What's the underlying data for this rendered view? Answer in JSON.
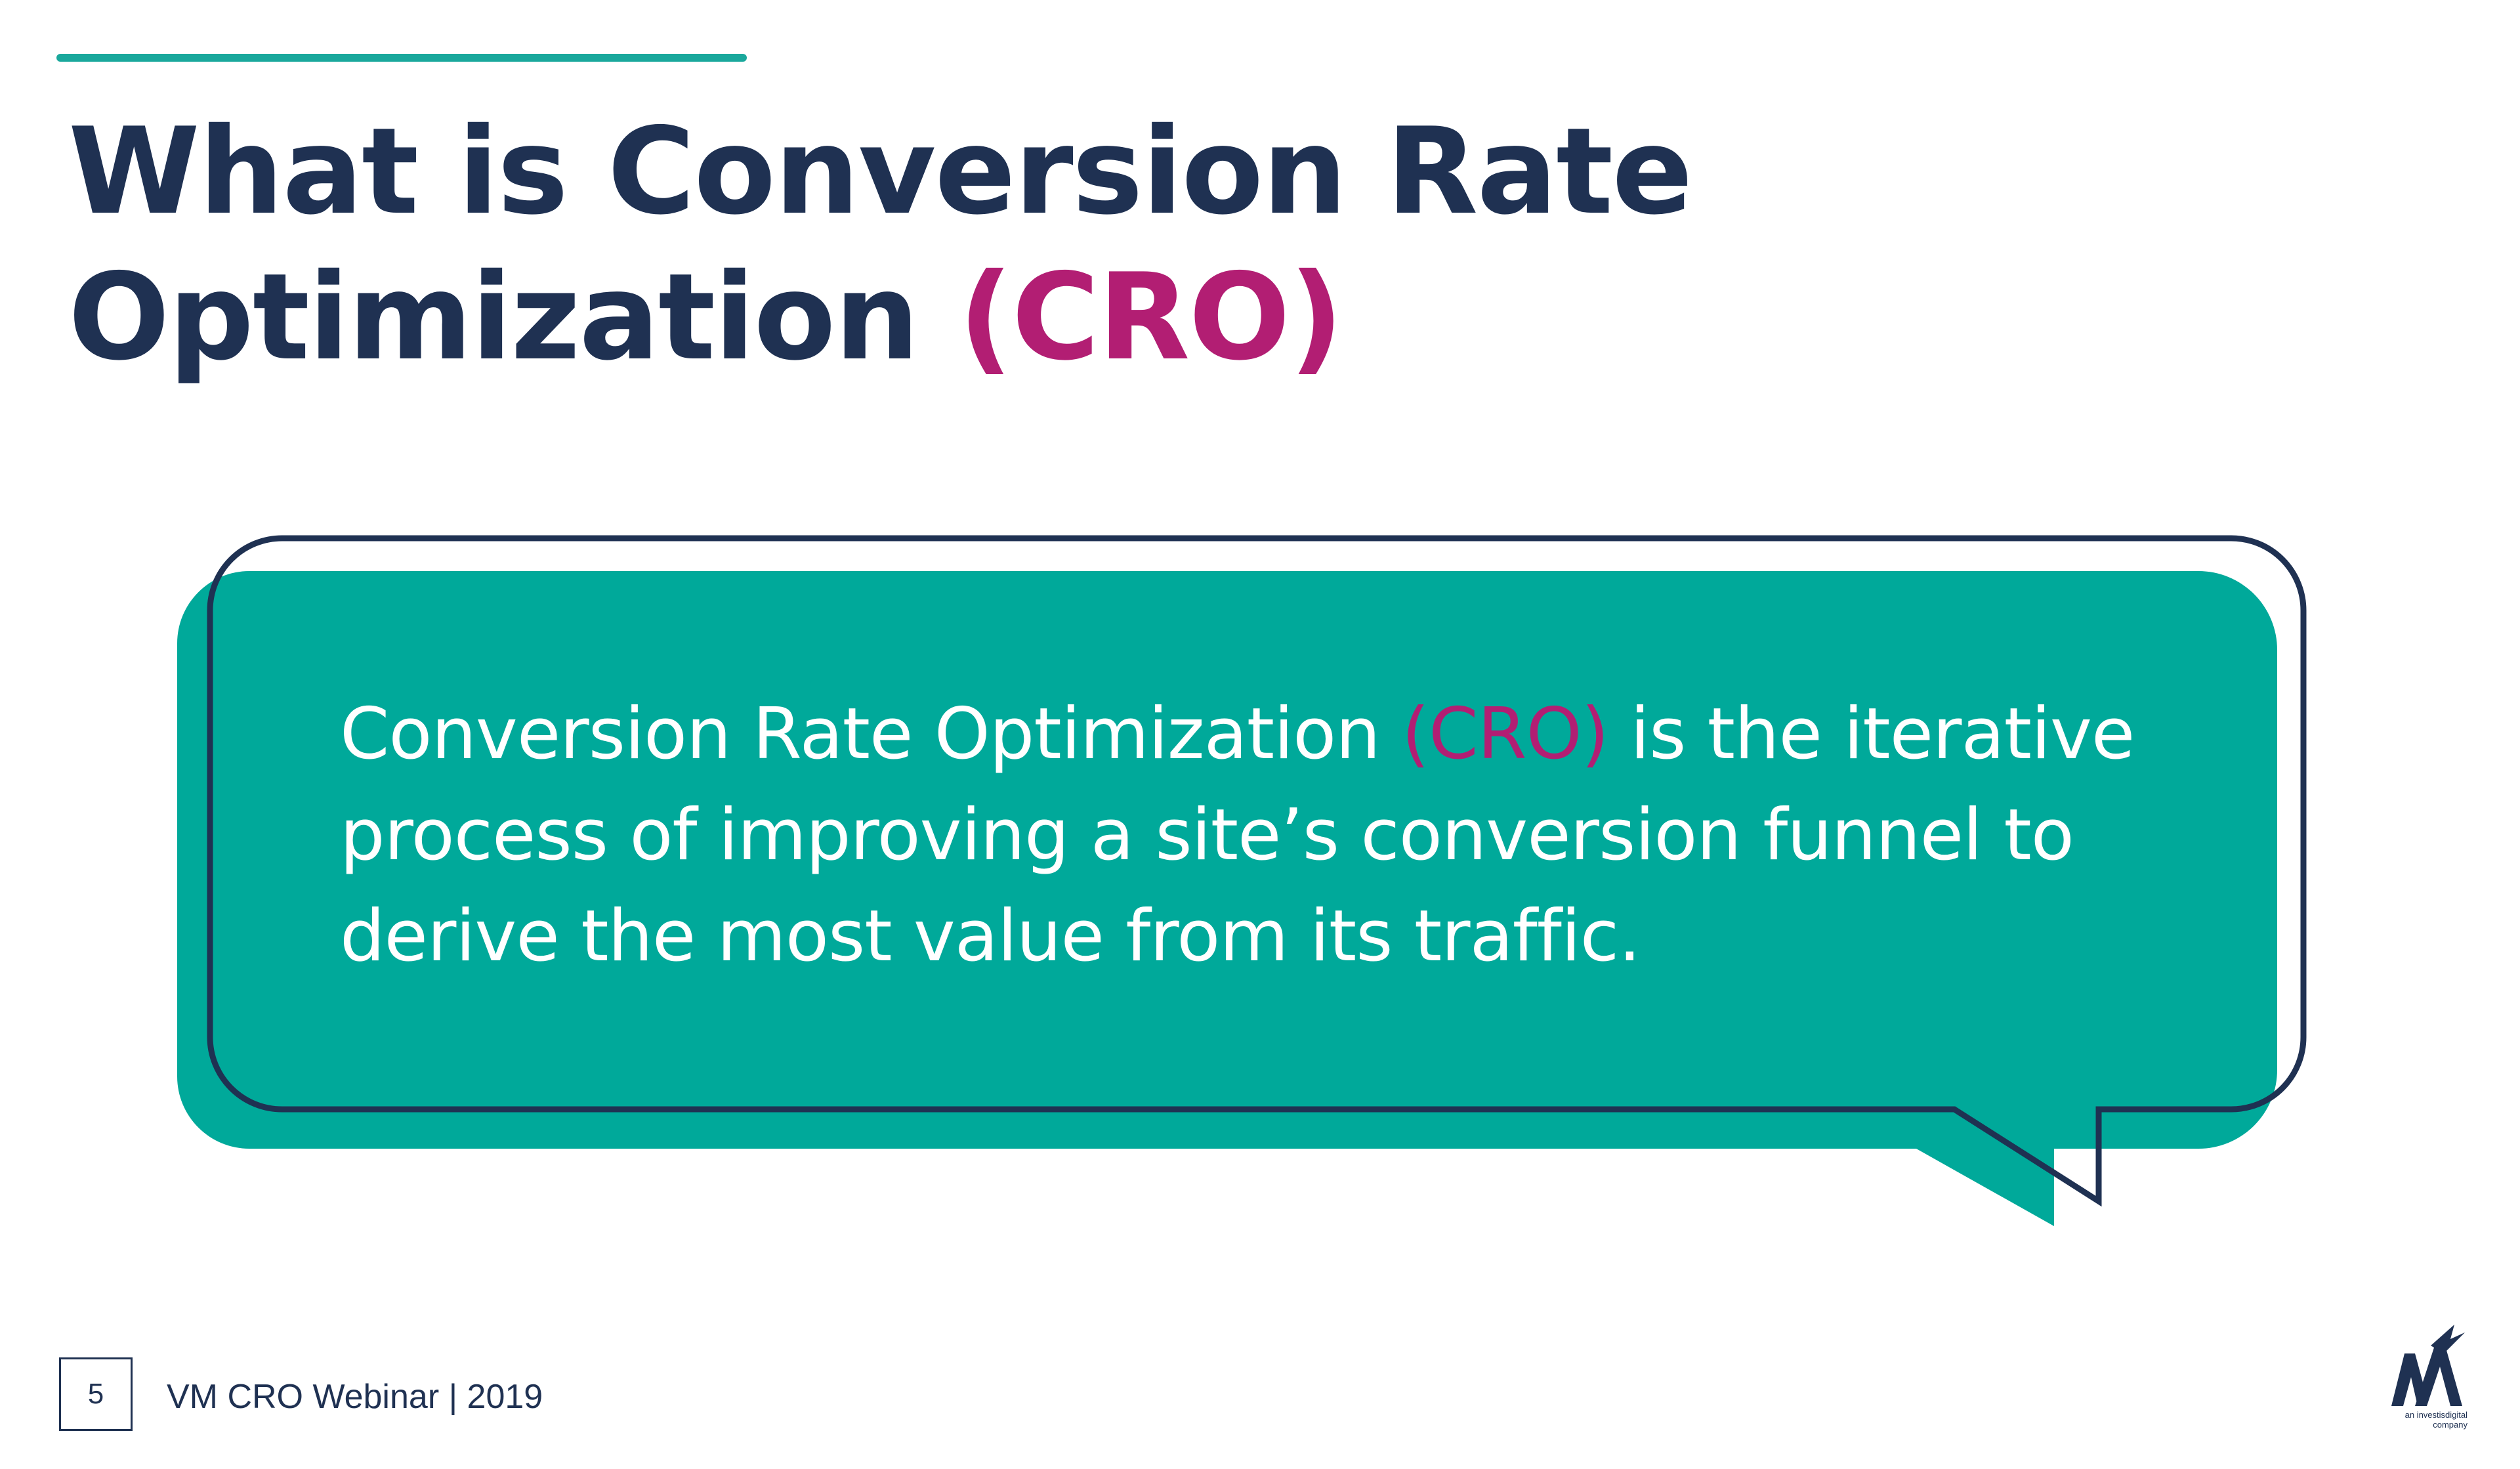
{
  "slide": {
    "title_line1": "What is Conversion Rate",
    "title_line2_main": "Optimization ",
    "title_line2_accent": "(CRO)"
  },
  "bubble": {
    "text_before": "Conversion Rate Optimization ",
    "text_accent": "(CRO)",
    "text_after": " is the iterative process of improving a site’s conversion funnel to derive the most value from its traffic."
  },
  "footer": {
    "page_number": "5",
    "label": "VM CRO Webinar | 2019"
  },
  "logo": {
    "caption_line1": "an investisdigital",
    "caption_line2": "company"
  },
  "colors": {
    "navy": "#1f3152",
    "teal": "#1aa89c",
    "bubble_teal": "#00a99a",
    "magenta": "#b21e73"
  }
}
